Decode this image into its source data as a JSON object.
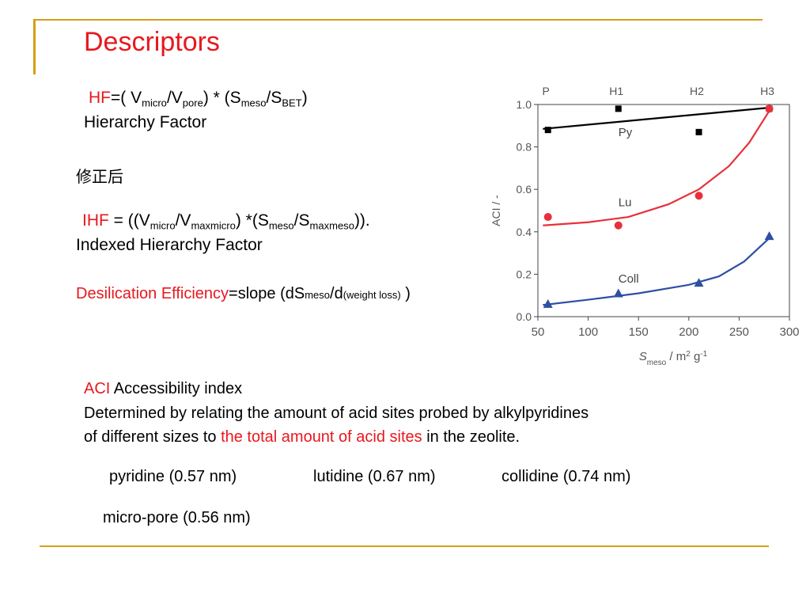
{
  "slide": {
    "title": "Descriptors",
    "hf": {
      "label": "HF",
      "f1": "=( V",
      "s1": "micro",
      "f2": "/V",
      "s2": "pore",
      "f3": ") * (S",
      "s3": "meso",
      "f4": "/S",
      "s4": "BET",
      "f5": ")",
      "name": "Hierarchy Factor"
    },
    "note_cn": "修正后",
    "ihf": {
      "label": "IHF",
      "f1": " = ((V",
      "s1": "micro",
      "f2": "/V",
      "s2": "maxmicro",
      "f3": ") *(S",
      "s3": "meso",
      "f4": "/S",
      "s4": "maxmeso",
      "f5": ")).",
      "name": "Indexed  Hierarchy Factor"
    },
    "de": {
      "label": "Desilication Efficiency",
      "f1": "=slope (dS",
      "s1": "meso",
      "f2": "/d",
      "s2": "(weight loss)",
      "f3": " )"
    },
    "aci": {
      "label": "ACI",
      "name": " Accessibility index",
      "desc1": "Determined by relating the amount of acid sites probed by alkylpyridines",
      "desc2a": "of different sizes to ",
      "desc2b": "the total amount of acid sites",
      "desc2c": " in the zeolite."
    },
    "probes": {
      "pyridine": "pyridine (0.57 nm)",
      "lutidine": "lutidine (0.67 nm)",
      "collidine": "collidine (0.74 nm)"
    },
    "micropore": "micro-pore (0.56 nm)",
    "colors": {
      "accent": "#E8181E",
      "rule": "#D4A017"
    }
  },
  "chart_data": {
    "type": "scatter",
    "xlabel_main": "S",
    "xlabel_sub": "meso",
    "xlabel_rest": " / m",
    "xlabel_sup1": "2",
    "xlabel_g": " g",
    "xlabel_sup2": "-1",
    "ylabel": "ACI / -",
    "xlim": [
      50,
      300
    ],
    "ylim": [
      0.0,
      1.0
    ],
    "xticks": [
      "50",
      "100",
      "150",
      "200",
      "250",
      "300"
    ],
    "yticks": [
      "0.0",
      "0.2",
      "0.4",
      "0.6",
      "0.8",
      "1.0"
    ],
    "top_labels": [
      {
        "text": "P",
        "x": 58
      },
      {
        "text": "H1",
        "x": 128
      },
      {
        "text": "H2",
        "x": 208
      },
      {
        "text": "H3",
        "x": 278
      }
    ],
    "series": [
      {
        "name": "Py",
        "color": "#000000",
        "marker": "square",
        "label_x": 130,
        "label_y": 0.85,
        "points": [
          [
            60,
            0.88
          ],
          [
            130,
            0.98
          ],
          [
            210,
            0.87
          ],
          [
            280,
            0.98
          ]
        ],
        "fit": [
          [
            55,
            0.885
          ],
          [
            280,
            0.985
          ]
        ]
      },
      {
        "name": "Lu",
        "color": "#E8303A",
        "marker": "circle",
        "label_x": 130,
        "label_y": 0.52,
        "points": [
          [
            60,
            0.47
          ],
          [
            130,
            0.43
          ],
          [
            210,
            0.57
          ],
          [
            280,
            0.98
          ]
        ],
        "fit": [
          [
            55,
            0.43
          ],
          [
            100,
            0.445
          ],
          [
            140,
            0.47
          ],
          [
            180,
            0.53
          ],
          [
            210,
            0.6
          ],
          [
            240,
            0.71
          ],
          [
            260,
            0.82
          ],
          [
            280,
            0.97
          ]
        ]
      },
      {
        "name": "Coll",
        "color": "#2E4FA3",
        "marker": "triangle",
        "label_x": 130,
        "label_y": 0.16,
        "points": [
          [
            60,
            0.06
          ],
          [
            130,
            0.11
          ],
          [
            210,
            0.16
          ],
          [
            280,
            0.38
          ]
        ],
        "fit": [
          [
            55,
            0.055
          ],
          [
            100,
            0.08
          ],
          [
            150,
            0.11
          ],
          [
            200,
            0.15
          ],
          [
            230,
            0.19
          ],
          [
            255,
            0.26
          ],
          [
            280,
            0.37
          ]
        ]
      }
    ]
  }
}
